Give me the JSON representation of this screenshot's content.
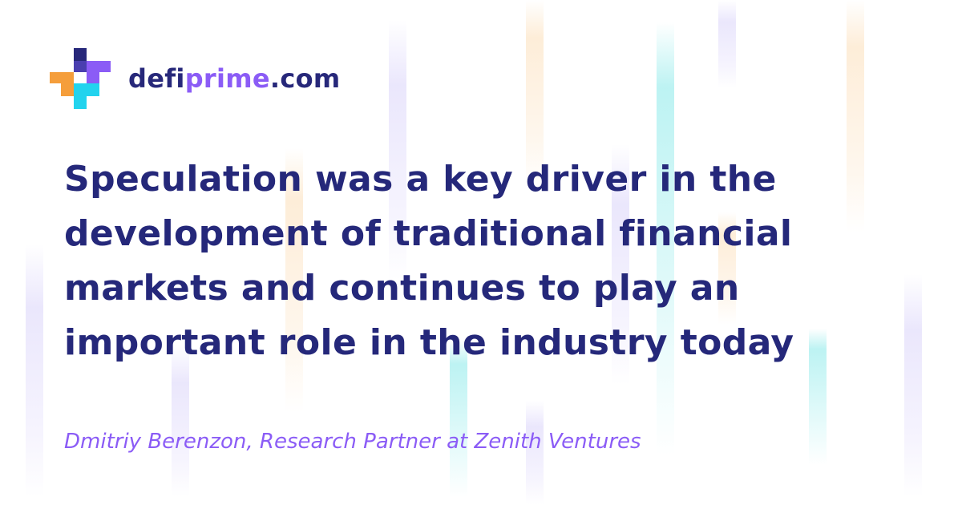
{
  "logo": {
    "prefix": "defi",
    "accent": "prime",
    "suffix": ".com",
    "icon": "plus-cross-logo-icon",
    "colors": {
      "navy": "#27287a",
      "purple": "#8b5cf6",
      "orange": "#f59e3b",
      "cyan": "#22d3ee"
    }
  },
  "quote": {
    "lines": [
      "Speculation was a key driver in the",
      "development of traditional financial",
      "markets and continues to play an",
      "important role in the industry today"
    ],
    "color": "#25287a"
  },
  "attribution": {
    "text": "Dmitriy Berenzon, Research Partner at Zenith Ventures",
    "color": "#8b5cf6"
  }
}
